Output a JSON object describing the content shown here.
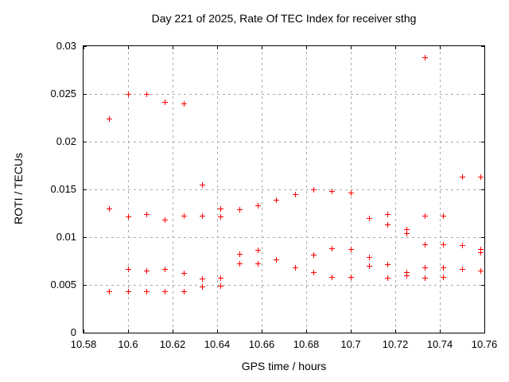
{
  "chart_data": {
    "type": "scatter",
    "title": "Day 221 of 2025, Rate Of TEC Index for receiver sthg",
    "xlabel": "GPS time / hours",
    "ylabel": "ROTI / TECUs",
    "xlim": [
      10.58,
      10.76
    ],
    "ylim": [
      0,
      0.03
    ],
    "x_ticks": [
      10.58,
      10.6,
      10.62,
      10.64,
      10.66,
      10.68,
      10.7,
      10.72,
      10.74,
      10.76
    ],
    "x_tick_labels": [
      "10.58",
      "10.6",
      "10.62",
      "10.64",
      "10.66",
      "10.68",
      "10.7",
      "10.72",
      "10.74",
      "10.76"
    ],
    "y_ticks": [
      0,
      0.005,
      0.01,
      0.015,
      0.02,
      0.025,
      0.03
    ],
    "y_tick_labels": [
      "0",
      "0.005",
      "0.01",
      "0.015",
      "0.02",
      "0.025",
      "0.03"
    ],
    "grid": true,
    "legend": "none",
    "marker": {
      "shape": "plus",
      "color": "#ff0000",
      "size": 7
    },
    "colors": {
      "background": "#ffffff",
      "axis": "#000000",
      "grid": "#aaaaaa",
      "text": "#000000"
    },
    "series": [
      {
        "points": [
          [
            10.5917,
            0.0224
          ],
          [
            10.5917,
            0.013
          ],
          [
            10.5917,
            0.0043
          ],
          [
            10.6,
            0.025
          ],
          [
            10.6,
            0.0121
          ],
          [
            10.6,
            0.0066
          ],
          [
            10.6,
            0.0043
          ],
          [
            10.6083,
            0.025
          ],
          [
            10.6083,
            0.0124
          ],
          [
            10.6083,
            0.0065
          ],
          [
            10.6083,
            0.0043
          ],
          [
            10.6167,
            0.0241
          ],
          [
            10.6167,
            0.0118
          ],
          [
            10.6167,
            0.0066
          ],
          [
            10.6167,
            0.0043
          ],
          [
            10.625,
            0.024
          ],
          [
            10.625,
            0.0122
          ],
          [
            10.625,
            0.0062
          ],
          [
            10.625,
            0.0043
          ],
          [
            10.6333,
            0.0155
          ],
          [
            10.6333,
            0.0122
          ],
          [
            10.6333,
            0.0056
          ],
          [
            10.6333,
            0.0048
          ],
          [
            10.6417,
            0.013
          ],
          [
            10.6417,
            0.0121
          ],
          [
            10.6417,
            0.0057
          ],
          [
            10.6417,
            0.0049
          ],
          [
            10.65,
            0.0129
          ],
          [
            10.65,
            0.0082
          ],
          [
            10.65,
            0.0072
          ],
          [
            10.6583,
            0.0133
          ],
          [
            10.6583,
            0.0086
          ],
          [
            10.6583,
            0.0072
          ],
          [
            10.6667,
            0.0139
          ],
          [
            10.6667,
            0.0076
          ],
          [
            10.675,
            0.0145
          ],
          [
            10.675,
            0.0068
          ],
          [
            10.6833,
            0.015
          ],
          [
            10.6833,
            0.0081
          ],
          [
            10.6833,
            0.0063
          ],
          [
            10.6917,
            0.0148
          ],
          [
            10.6917,
            0.0088
          ],
          [
            10.6917,
            0.0058
          ],
          [
            10.7,
            0.0146
          ],
          [
            10.7,
            0.0087
          ],
          [
            10.7,
            0.0058
          ],
          [
            10.7083,
            0.012
          ],
          [
            10.7083,
            0.0079
          ],
          [
            10.7083,
            0.007
          ],
          [
            10.7167,
            0.0124
          ],
          [
            10.7167,
            0.0113
          ],
          [
            10.7167,
            0.0071
          ],
          [
            10.7167,
            0.0057
          ],
          [
            10.725,
            0.0108
          ],
          [
            10.725,
            0.0104
          ],
          [
            10.725,
            0.0063
          ],
          [
            10.725,
            0.006
          ],
          [
            10.7333,
            0.0288
          ],
          [
            10.7333,
            0.0122
          ],
          [
            10.7333,
            0.0092
          ],
          [
            10.7333,
            0.0068
          ],
          [
            10.7333,
            0.0057
          ],
          [
            10.7417,
            0.0122
          ],
          [
            10.7417,
            0.0092
          ],
          [
            10.7417,
            0.0068
          ],
          [
            10.7417,
            0.0058
          ],
          [
            10.75,
            0.0163
          ],
          [
            10.75,
            0.0091
          ],
          [
            10.75,
            0.0066
          ],
          [
            10.7583,
            0.0163
          ],
          [
            10.7583,
            0.0087
          ],
          [
            10.7583,
            0.0084
          ],
          [
            10.7583,
            0.0065
          ]
        ]
      }
    ]
  }
}
